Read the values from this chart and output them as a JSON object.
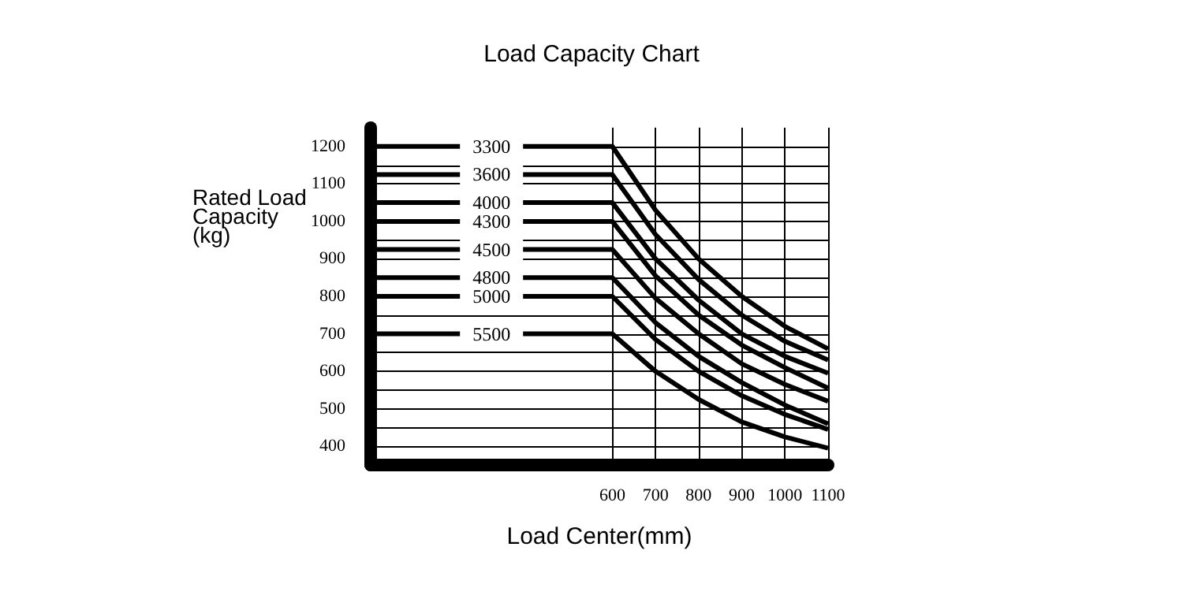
{
  "chart_data": {
    "type": "line",
    "title": "Load Capacity Chart",
    "xlabel": "Load Center(mm)",
    "ylabel": "Rated Load Capacity (kg)",
    "xlim": [
      40,
      1100
    ],
    "xticks": [
      600,
      700,
      800,
      900,
      1000,
      1100
    ],
    "ylim": [
      350,
      1250
    ],
    "yticks": [
      400,
      {
        "value": 450,
        "label": null
      },
      500,
      {
        "value": 550,
        "label": null
      },
      600,
      {
        "value": 650,
        "label": null
      },
      700,
      {
        "value": 750,
        "label": null
      },
      800,
      {
        "value": 850,
        "label": null
      },
      900,
      {
        "value": 950,
        "label": null
      },
      1000,
      {
        "value": 1050,
        "label": null
      },
      1100,
      {
        "value": 1150,
        "label": null
      },
      1200
    ],
    "grid": true,
    "legend": false,
    "marker": "none",
    "line_style": "solid",
    "series": [
      {
        "name": "3300",
        "color": "#000000",
        "x": [
          40,
          600,
          700,
          800,
          900,
          1000,
          1100
        ],
        "values": [
          1200,
          1200,
          1030,
          900,
          800,
          720,
          660
        ]
      },
      {
        "name": "3600",
        "color": "#000000",
        "x": [
          40,
          600,
          700,
          800,
          900,
          1000,
          1100
        ],
        "values": [
          1125,
          1125,
          965,
          845,
          750,
          680,
          630
        ]
      },
      {
        "name": "4000",
        "color": "#000000",
        "x": [
          40,
          600,
          700,
          800,
          900,
          1000,
          1100
        ],
        "values": [
          1050,
          1050,
          900,
          790,
          700,
          640,
          595
        ]
      },
      {
        "name": "4300",
        "color": "#000000",
        "x": [
          40,
          600,
          700,
          800,
          900,
          1000,
          1100
        ],
        "values": [
          1000,
          1000,
          855,
          750,
          670,
          610,
          555
        ]
      },
      {
        "name": "4500",
        "color": "#000000",
        "x": [
          40,
          600,
          700,
          800,
          900,
          1000,
          1100
        ],
        "values": [
          925,
          925,
          795,
          700,
          620,
          565,
          520
        ]
      },
      {
        "name": "4800",
        "color": "#000000",
        "x": [
          40,
          600,
          700,
          800,
          900,
          1000,
          1100
        ],
        "values": [
          850,
          850,
          730,
          640,
          570,
          510,
          460
        ]
      },
      {
        "name": "5000",
        "color": "#000000",
        "x": [
          40,
          600,
          700,
          800,
          900,
          1000,
          1100
        ],
        "values": [
          800,
          800,
          685,
          600,
          535,
          485,
          445
        ]
      },
      {
        "name": "5500",
        "color": "#000000",
        "x": [
          40,
          600,
          700,
          800,
          900,
          1000,
          1100
        ],
        "values": [
          700,
          700,
          600,
          525,
          465,
          425,
          395
        ]
      }
    ]
  }
}
